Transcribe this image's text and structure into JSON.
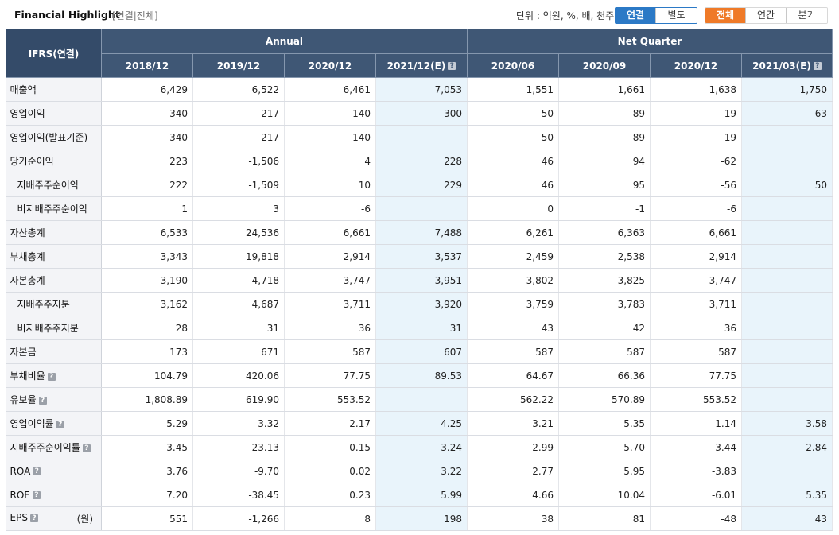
{
  "header": {
    "title": "Financial Highlight",
    "subtitle": "[연결|전체]",
    "unit_label": "단위 : 억원, %, 배, 천주",
    "type_toggle": [
      "연결",
      "별도"
    ],
    "period_toggle": [
      "전체",
      "연간",
      "분기"
    ],
    "help_icon": "?"
  },
  "colors": {
    "header_bg": "#3f5775",
    "active_blue": "#2b79c6",
    "active_orange": "#ef7a28",
    "negative": "#d0111b",
    "estimate_bg": "#e9f4fb"
  },
  "table": {
    "corner_label": "IFRS(연결)",
    "group_annual": "Annual",
    "group_quarter": "Net Quarter",
    "columns": [
      "2018/12",
      "2019/12",
      "2020/12",
      "2021/12(E)",
      "2020/06",
      "2020/09",
      "2020/12",
      "2021/03(E)"
    ],
    "estimate_columns": [
      3,
      7
    ],
    "rows": [
      {
        "label": "매출액",
        "sub": false,
        "help": false,
        "values": [
          "6,429",
          "6,522",
          "6,461",
          "7,053",
          "1,551",
          "1,661",
          "1,638",
          "1,750"
        ]
      },
      {
        "label": "영업이익",
        "sub": false,
        "help": false,
        "values": [
          "340",
          "217",
          "140",
          "300",
          "50",
          "89",
          "19",
          "63"
        ]
      },
      {
        "label": "영업이익(발표기준)",
        "sub": false,
        "help": false,
        "values": [
          "340",
          "217",
          "140",
          "",
          "50",
          "89",
          "19",
          ""
        ]
      },
      {
        "label": "당기순이익",
        "sub": false,
        "help": false,
        "values": [
          "223",
          "-1,506",
          "4",
          "228",
          "46",
          "94",
          "-62",
          ""
        ]
      },
      {
        "label": "지배주주순이익",
        "sub": true,
        "help": false,
        "values": [
          "222",
          "-1,509",
          "10",
          "229",
          "46",
          "95",
          "-56",
          "50"
        ]
      },
      {
        "label": "비지배주주순이익",
        "sub": true,
        "help": false,
        "values": [
          "1",
          "3",
          "-6",
          "",
          "0",
          "-1",
          "-6",
          ""
        ]
      },
      {
        "label": "자산총계",
        "sub": false,
        "help": false,
        "values": [
          "6,533",
          "24,536",
          "6,661",
          "7,488",
          "6,261",
          "6,363",
          "6,661",
          ""
        ]
      },
      {
        "label": "부채총계",
        "sub": false,
        "help": false,
        "values": [
          "3,343",
          "19,818",
          "2,914",
          "3,537",
          "2,459",
          "2,538",
          "2,914",
          ""
        ]
      },
      {
        "label": "자본총계",
        "sub": false,
        "help": false,
        "values": [
          "3,190",
          "4,718",
          "3,747",
          "3,951",
          "3,802",
          "3,825",
          "3,747",
          ""
        ]
      },
      {
        "label": "지배주주지분",
        "sub": true,
        "help": false,
        "values": [
          "3,162",
          "4,687",
          "3,711",
          "3,920",
          "3,759",
          "3,783",
          "3,711",
          ""
        ]
      },
      {
        "label": "비지배주주지분",
        "sub": true,
        "help": false,
        "values": [
          "28",
          "31",
          "36",
          "31",
          "43",
          "42",
          "36",
          ""
        ]
      },
      {
        "label": "자본금",
        "sub": false,
        "help": false,
        "values": [
          "173",
          "671",
          "587",
          "607",
          "587",
          "587",
          "587",
          ""
        ]
      },
      {
        "label": "부채비율",
        "sub": false,
        "help": true,
        "values": [
          "104.79",
          "420.06",
          "77.75",
          "89.53",
          "64.67",
          "66.36",
          "77.75",
          ""
        ]
      },
      {
        "label": "유보율",
        "sub": false,
        "help": true,
        "values": [
          "1,808.89",
          "619.90",
          "553.52",
          "",
          "562.22",
          "570.89",
          "553.52",
          ""
        ]
      },
      {
        "label": "영업이익률",
        "sub": false,
        "help": true,
        "values": [
          "5.29",
          "3.32",
          "2.17",
          "4.25",
          "3.21",
          "5.35",
          "1.14",
          "3.58"
        ]
      },
      {
        "label": "지배주주순이익률",
        "sub": false,
        "help": true,
        "values": [
          "3.45",
          "-23.13",
          "0.15",
          "3.24",
          "2.99",
          "5.70",
          "-3.44",
          "2.84"
        ]
      },
      {
        "label": "ROA",
        "sub": false,
        "help": true,
        "values": [
          "3.76",
          "-9.70",
          "0.02",
          "3.22",
          "2.77",
          "5.95",
          "-3.83",
          ""
        ]
      },
      {
        "label": "ROE",
        "sub": false,
        "help": true,
        "values": [
          "7.20",
          "-38.45",
          "0.23",
          "5.99",
          "4.66",
          "10.04",
          "-6.01",
          "5.35"
        ]
      },
      {
        "label": "EPS",
        "sub": false,
        "help": true,
        "unit": "(원)",
        "values": [
          "551",
          "-1,266",
          "8",
          "198",
          "38",
          "81",
          "-48",
          "43"
        ]
      }
    ]
  }
}
